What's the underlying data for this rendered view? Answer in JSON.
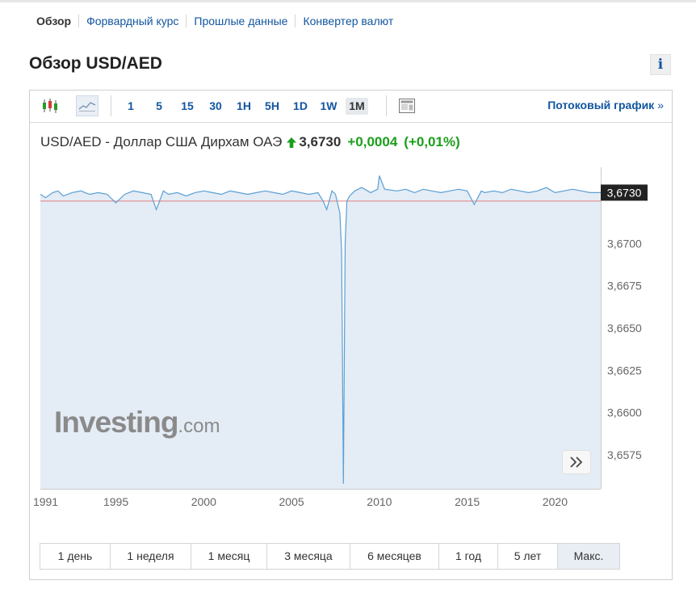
{
  "subnav": {
    "items": [
      {
        "label": "Обзор",
        "active": true
      },
      {
        "label": "Форвардный курс"
      },
      {
        "label": "Прошлые данные"
      },
      {
        "label": "Конвертер валют"
      }
    ]
  },
  "page": {
    "title": "Обзор USD/AED",
    "info_label": "i"
  },
  "toolbar": {
    "chart_type_icons": [
      "candlestick-icon",
      "area-chart-icon"
    ],
    "intervals": [
      {
        "label": "1"
      },
      {
        "label": "5"
      },
      {
        "label": "15"
      },
      {
        "label": "30"
      },
      {
        "label": "1H"
      },
      {
        "label": "5H"
      },
      {
        "label": "1D"
      },
      {
        "label": "1W"
      },
      {
        "label": "1M",
        "active": true
      }
    ],
    "layout_icon": "layout-icon",
    "streaming_label": "Потоковый график",
    "streaming_arrow": "»"
  },
  "quote": {
    "name": "USD/AED - Доллар США Дирхам ОАЭ",
    "price": "3,6730",
    "change": "+0,0004",
    "change_pct": "(+0,01%)",
    "direction": "up",
    "color_up": "#1b9e1b"
  },
  "chart_data": {
    "type": "area",
    "title": "",
    "xlabel": "",
    "ylabel": "",
    "x_ticks": [
      "1991",
      "1995",
      "2000",
      "2005",
      "2010",
      "2015",
      "2020"
    ],
    "y_ticks": [
      "3,6575",
      "3,6600",
      "3,6625",
      "3,6650",
      "3,6675",
      "3,6700"
    ],
    "ylim": [
      3.6555,
      3.6745
    ],
    "xlim": [
      1990.7,
      2022.6
    ],
    "current_value_label": "3,6730",
    "reference_line": 3.6725,
    "series": [
      {
        "color": "#5b9fd4",
        "fill": "#e4ecf5",
        "x": [
          1990.7,
          1991.0,
          1991.4,
          1991.7,
          1992.0,
          1992.5,
          1993.0,
          1993.5,
          1994.0,
          1994.5,
          1995.0,
          1995.5,
          1996.0,
          1996.5,
          1997.0,
          1997.3,
          1997.7,
          1998.0,
          1998.5,
          1999.0,
          1999.5,
          2000.0,
          2000.5,
          2001.0,
          2001.5,
          2002.0,
          2002.5,
          2003.0,
          2003.5,
          2004.0,
          2004.5,
          2005.0,
          2005.5,
          2006.0,
          2006.5,
          2006.8,
          2007.0,
          2007.3,
          2007.5,
          2007.75,
          2007.85,
          2007.95,
          2008.05,
          2008.15,
          2008.3,
          2008.6,
          2009.0,
          2009.5,
          2009.9,
          2010.0,
          2010.3,
          2011.0,
          2011.5,
          2012.0,
          2012.5,
          2013.0,
          2013.5,
          2014.0,
          2014.5,
          2015.0,
          2015.4,
          2015.8,
          2016.0,
          2016.5,
          2017.0,
          2017.5,
          2018.0,
          2018.5,
          2019.0,
          2019.5,
          2020.0,
          2020.5,
          2021.0,
          2021.5,
          2022.0,
          2022.6
        ],
        "values": [
          3.6729,
          3.6727,
          3.673,
          3.6731,
          3.6728,
          3.673,
          3.6731,
          3.6729,
          3.673,
          3.6729,
          3.6724,
          3.6729,
          3.6731,
          3.673,
          3.6729,
          3.672,
          3.6731,
          3.6729,
          3.673,
          3.6728,
          3.673,
          3.6731,
          3.673,
          3.6729,
          3.6731,
          3.673,
          3.6729,
          3.673,
          3.6731,
          3.673,
          3.6729,
          3.6731,
          3.673,
          3.6729,
          3.673,
          3.6725,
          3.672,
          3.6731,
          3.6729,
          3.6718,
          3.6695,
          3.6558,
          3.67,
          3.6725,
          3.6728,
          3.6731,
          3.6733,
          3.673,
          3.6732,
          3.674,
          3.6732,
          3.6731,
          3.6732,
          3.673,
          3.6732,
          3.6731,
          3.673,
          3.6731,
          3.6732,
          3.6731,
          3.6723,
          3.6731,
          3.673,
          3.6731,
          3.673,
          3.6732,
          3.6731,
          3.673,
          3.6731,
          3.6733,
          3.673,
          3.6731,
          3.6732,
          3.6731,
          3.673,
          3.673
        ]
      }
    ],
    "grid": false
  },
  "watermark": {
    "big": "Investing",
    "small": ".com"
  },
  "scroll_button_label": "»",
  "ranges": [
    {
      "label": "1 день"
    },
    {
      "label": "1 неделя"
    },
    {
      "label": "1 месяц"
    },
    {
      "label": "3 месяца"
    },
    {
      "label": "6 месяцев"
    },
    {
      "label": "1 год"
    },
    {
      "label": "5 лет"
    },
    {
      "label": "Макс.",
      "active": true
    }
  ]
}
